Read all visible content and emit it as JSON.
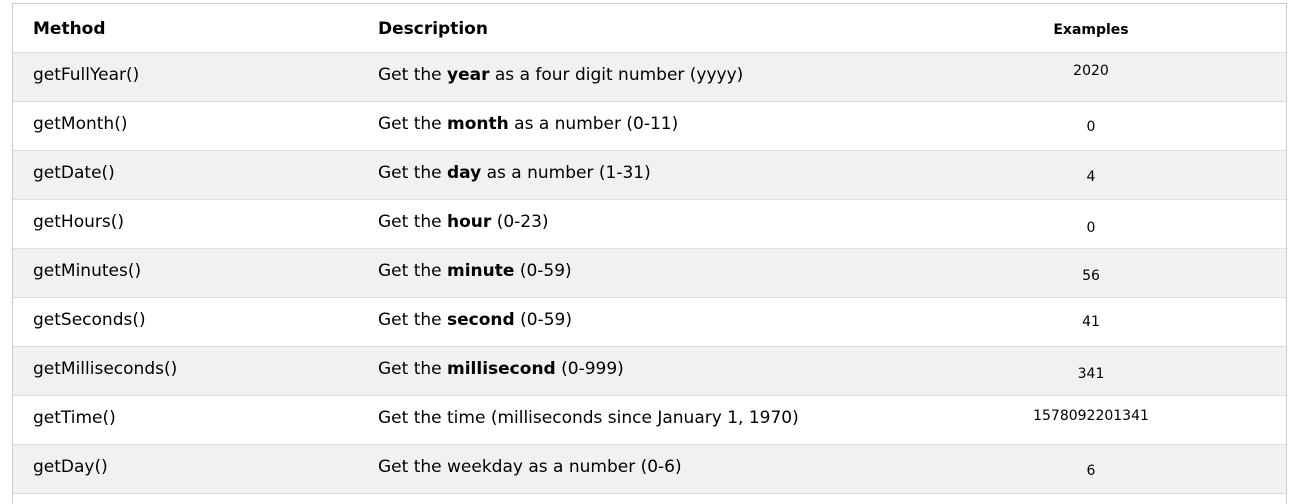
{
  "headers": {
    "method": "Method",
    "description": "Description",
    "examples": "Examples"
  },
  "rows": [
    {
      "method": "getFullYear()",
      "pre": "Get the ",
      "bold": "year",
      "post": " as a four digit number (yyyy)",
      "example": "2020"
    },
    {
      "method": "getMonth()",
      "pre": "Get the ",
      "bold": "month",
      "post": " as a number (0-11)",
      "example": "0"
    },
    {
      "method": "getDate()",
      "pre": "Get the ",
      "bold": "day",
      "post": " as a number (1-31)",
      "example": "4"
    },
    {
      "method": "getHours()",
      "pre": "Get the ",
      "bold": "hour",
      "post": " (0-23)",
      "example": "0"
    },
    {
      "method": "getMinutes()",
      "pre": "Get the ",
      "bold": "minute",
      "post": " (0-59)",
      "example": "56"
    },
    {
      "method": "getSeconds()",
      "pre": "Get the ",
      "bold": "second",
      "post": " (0-59)",
      "example": "41"
    },
    {
      "method": "getMilliseconds()",
      "pre": "Get the ",
      "bold": "millisecond",
      "post": " (0-999)",
      "example": "341"
    },
    {
      "method": "getTime()",
      "pre": "Get the time (milliseconds since January 1, 1970)",
      "bold": "",
      "post": "",
      "example": "1578092201341"
    },
    {
      "method": "getDay()",
      "pre": "Get the weekday as a number (0-6)",
      "bold": "",
      "post": "",
      "example": "6"
    }
  ]
}
